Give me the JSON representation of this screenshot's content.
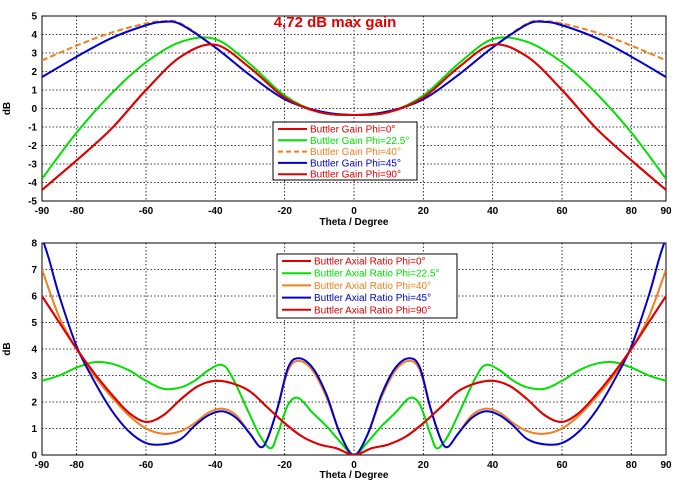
{
  "chart_data": [
    {
      "type": "line",
      "annotation": "4,72 dB max gain",
      "annotation_color": "#e00000",
      "xlabel": "Theta / Degree",
      "ylabel": "dB",
      "xlim": [
        -90,
        90
      ],
      "ylim": [
        -5,
        5
      ],
      "xticks": [
        -90,
        -80,
        -60,
        -40,
        -20,
        0,
        20,
        40,
        60,
        80,
        90
      ],
      "yticks": [
        -5,
        -4,
        -3,
        -2,
        -1,
        0,
        1,
        2,
        3,
        4,
        5
      ],
      "grid": true,
      "legend_position": "center-lower",
      "symmetric_about_zero": true,
      "series": [
        {
          "name": "Buttler Gain Phi=0°",
          "color": "#e00000",
          "dash": false,
          "x": [
            0,
            10,
            20,
            30,
            40,
            50,
            60,
            70,
            80,
            90
          ],
          "y": [
            -0.35,
            -0.2,
            0.6,
            2.2,
            3.45,
            2.8,
            1.0,
            -1.1,
            -2.8,
            -4.4
          ]
        },
        {
          "name": "Buttler Gain Phi=22.5°",
          "color": "#00e000",
          "dash": false,
          "x": [
            0,
            10,
            20,
            30,
            40,
            50,
            60,
            70,
            80,
            90
          ],
          "y": [
            -0.35,
            -0.2,
            0.7,
            2.4,
            3.75,
            3.6,
            2.5,
            0.8,
            -1.3,
            -3.8
          ]
        },
        {
          "name": "Buttler Gain Phi=40°",
          "color": "#f08020",
          "dash": true,
          "x": [
            0,
            10,
            20,
            30,
            40,
            50,
            55,
            60,
            70,
            80,
            90
          ],
          "y": [
            -0.35,
            -0.15,
            0.5,
            1.8,
            3.3,
            4.6,
            4.72,
            4.6,
            4.1,
            3.4,
            2.6
          ]
        },
        {
          "name": "Buttler Gain Phi=45°",
          "color": "#0000d0",
          "dash": false,
          "x": [
            0,
            10,
            20,
            30,
            40,
            50,
            55,
            60,
            70,
            80,
            90
          ],
          "y": [
            -0.35,
            -0.15,
            0.5,
            1.8,
            3.3,
            4.55,
            4.68,
            4.5,
            3.8,
            2.8,
            1.7
          ]
        },
        {
          "name": "Buttler Gain Phi=90°",
          "color": "#e00000",
          "dash": false,
          "x": [
            0,
            10,
            20,
            30,
            40,
            50,
            60,
            70,
            80,
            90
          ],
          "y": [
            -0.35,
            -0.2,
            0.6,
            2.2,
            3.45,
            2.8,
            1.0,
            -1.1,
            -2.8,
            -4.4
          ]
        }
      ]
    },
    {
      "type": "line",
      "xlabel": "Theta / Degree",
      "ylabel": "dB",
      "xlim": [
        -90,
        90
      ],
      "ylim": [
        0,
        8
      ],
      "xticks": [
        -90,
        -80,
        -60,
        -40,
        -20,
        0,
        20,
        40,
        60,
        80,
        90
      ],
      "yticks": [
        0,
        1,
        2,
        3,
        4,
        5,
        6,
        7,
        8
      ],
      "grid": true,
      "legend_position": "top-center",
      "symmetric_about_zero": true,
      "series": [
        {
          "name": "Buttler Axial Ratio Phi=0°",
          "color": "#e00000",
          "dash": false,
          "x": [
            0,
            5,
            10,
            15,
            20,
            25,
            30,
            35,
            40,
            45,
            50,
            55,
            60,
            65,
            70,
            75,
            80,
            85,
            90
          ],
          "y": [
            0,
            0.25,
            0.4,
            0.7,
            1.2,
            1.8,
            2.4,
            2.7,
            2.8,
            2.6,
            2.1,
            1.5,
            1.25,
            1.6,
            2.3,
            3.1,
            4.0,
            5.0,
            6.0
          ]
        },
        {
          "name": "Buttler Axial Ratio Phi=22.5°",
          "color": "#00e000",
          "dash": false,
          "x": [
            0,
            4,
            8,
            12,
            16,
            19,
            22,
            24,
            27,
            30,
            35,
            38,
            42,
            46,
            50,
            55,
            60,
            65,
            70,
            75,
            80,
            85,
            90
          ],
          "y": [
            0,
            0.5,
            1.1,
            1.6,
            2.15,
            1.9,
            0.8,
            0.25,
            0.7,
            1.5,
            2.9,
            3.4,
            3.2,
            2.8,
            2.55,
            2.5,
            2.8,
            3.2,
            3.45,
            3.5,
            3.3,
            3.0,
            2.8
          ]
        },
        {
          "name": "Buttler Axial Ratio Phi=40°",
          "color": "#f08020",
          "dash": false,
          "x": [
            0,
            4,
            8,
            12,
            16,
            19,
            22,
            25,
            27,
            30,
            34,
            38,
            42,
            46,
            50,
            55,
            60,
            65,
            70,
            75,
            80,
            85,
            90
          ],
          "y": [
            0,
            0.8,
            2.2,
            3.2,
            3.55,
            3.2,
            1.8,
            0.6,
            0.3,
            0.8,
            1.5,
            1.75,
            1.6,
            1.2,
            0.9,
            0.8,
            1.0,
            1.5,
            2.2,
            3.0,
            4.0,
            5.2,
            7.0
          ]
        },
        {
          "name": "Buttler Axial Ratio Phi=45°",
          "color": "#0000d0",
          "dash": false,
          "x": [
            0,
            4,
            8,
            12,
            16,
            19,
            22,
            25,
            27,
            30,
            34,
            38,
            42,
            46,
            50,
            55,
            60,
            65,
            70,
            75,
            80,
            85,
            88,
            90
          ],
          "y": [
            0,
            0.8,
            2.3,
            3.3,
            3.65,
            3.3,
            1.8,
            0.6,
            0.3,
            0.8,
            1.4,
            1.65,
            1.5,
            1.1,
            0.6,
            0.4,
            0.45,
            0.9,
            1.7,
            2.8,
            4.1,
            6.0,
            7.4,
            8.2
          ]
        },
        {
          "name": "Buttler Axial Ratio Phi=90°",
          "color": "#e00000",
          "dash": false,
          "x": [
            0,
            5,
            10,
            15,
            20,
            25,
            30,
            35,
            40,
            45,
            50,
            55,
            60,
            65,
            70,
            75,
            80,
            85,
            90
          ],
          "y": [
            0,
            0.25,
            0.4,
            0.7,
            1.2,
            1.8,
            2.4,
            2.7,
            2.8,
            2.6,
            2.1,
            1.5,
            1.25,
            1.6,
            2.3,
            3.1,
            4.0,
            5.0,
            6.0
          ]
        }
      ]
    }
  ]
}
